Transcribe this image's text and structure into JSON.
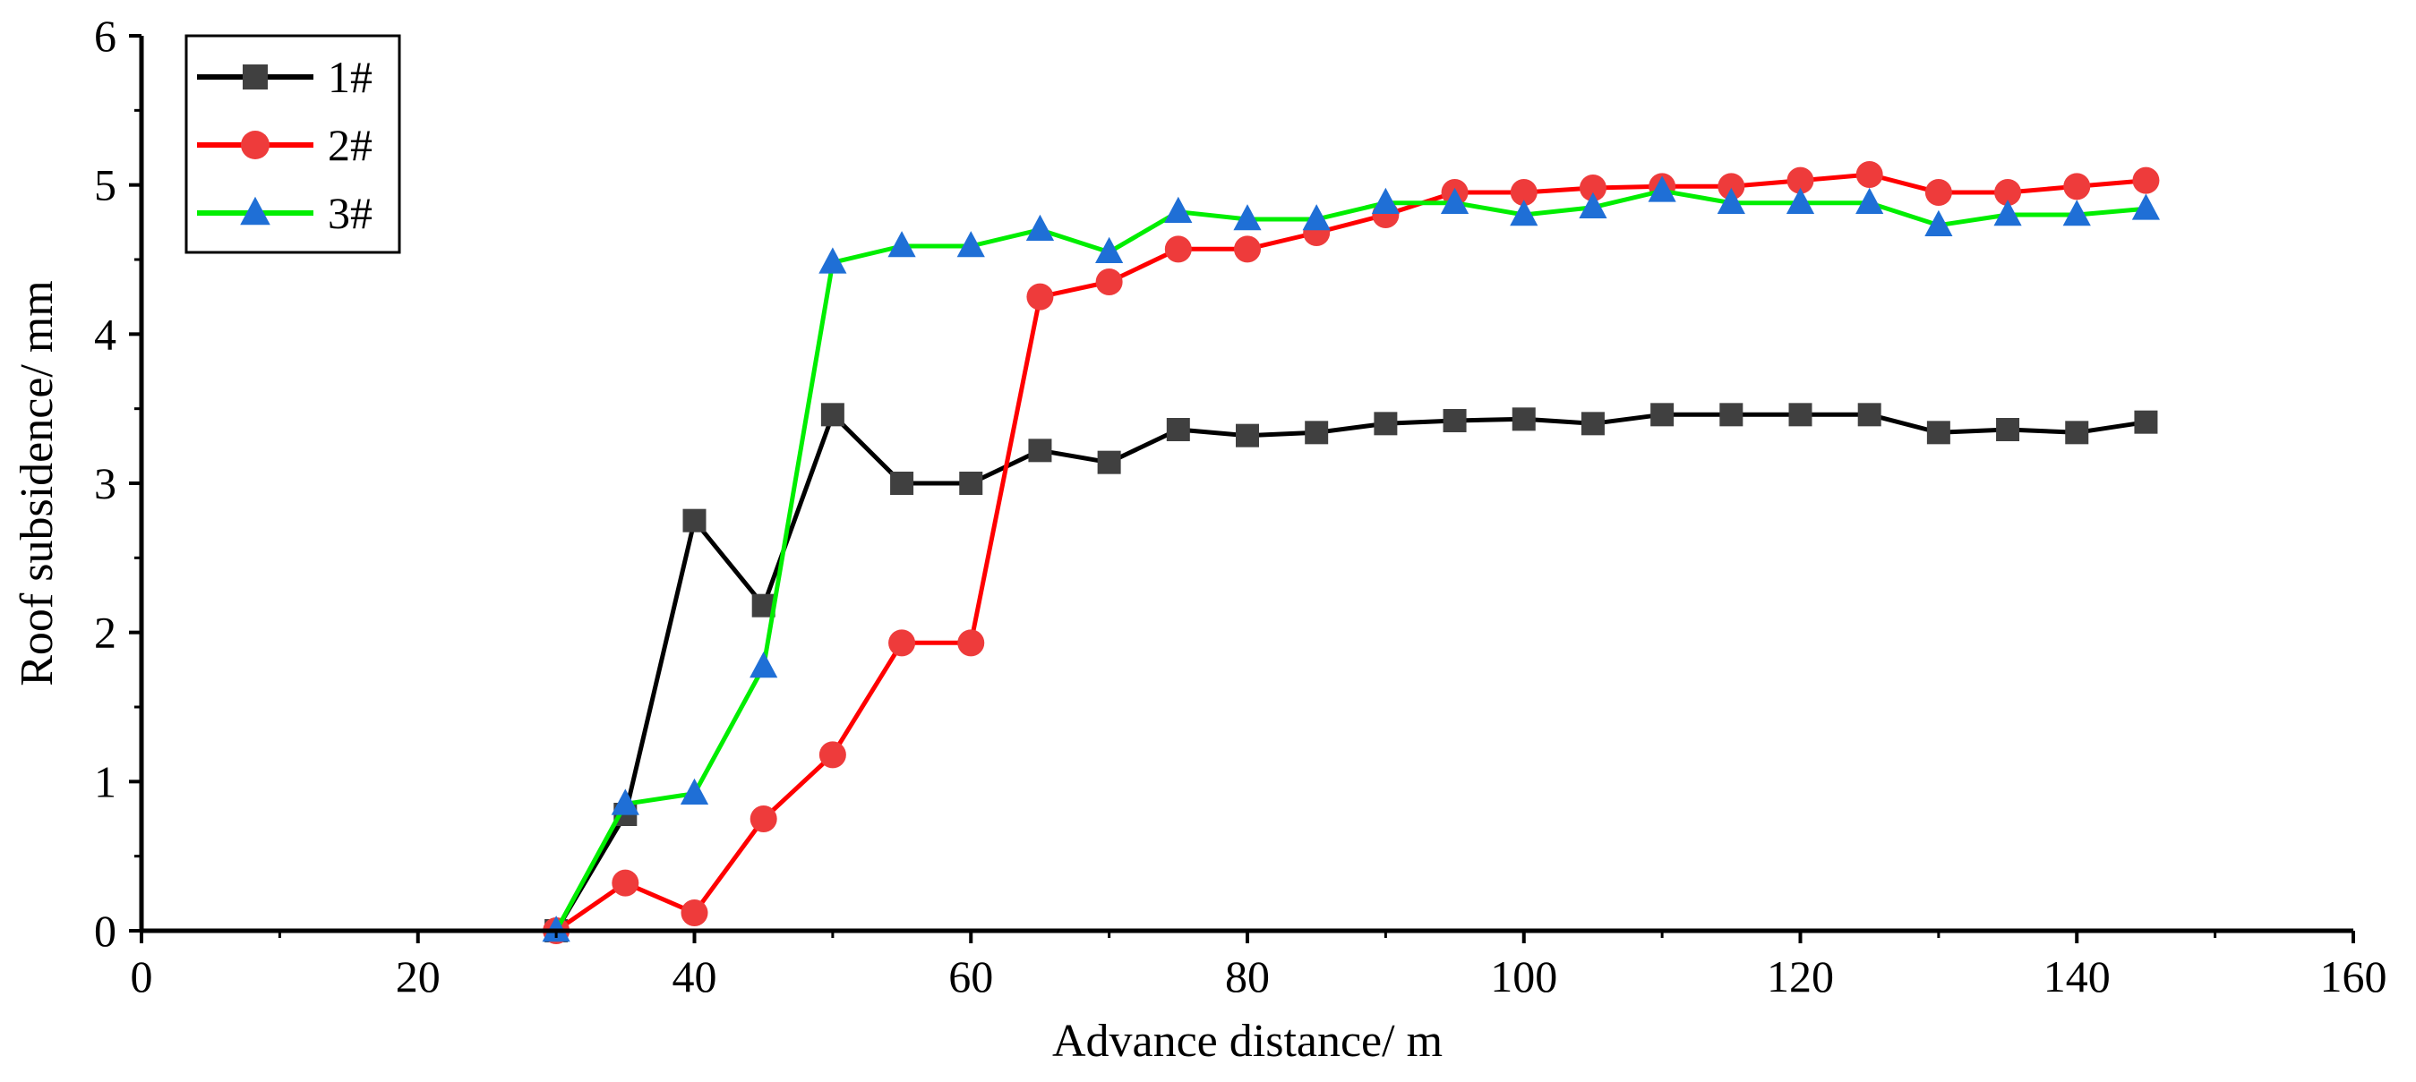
{
  "chart_data": {
    "type": "line",
    "title": "",
    "xlabel": "Advance distance/ m",
    "ylabel": "Roof subsidence/ mm",
    "xlim": [
      0,
      160
    ],
    "ylim": [
      0,
      6
    ],
    "xticks": [
      0,
      20,
      40,
      60,
      80,
      100,
      120,
      140,
      160
    ],
    "yticks": [
      0,
      1,
      2,
      3,
      4,
      5,
      6
    ],
    "grid": false,
    "legend_position": "top-left",
    "x": [
      30,
      35,
      40,
      45,
      50,
      55,
      60,
      65,
      70,
      75,
      80,
      85,
      90,
      95,
      100,
      105,
      110,
      115,
      120,
      125,
      130,
      135,
      140,
      145
    ],
    "series": [
      {
        "name": "1#",
        "color": "#000000",
        "marker_color": "#404040",
        "marker": "square",
        "values": [
          0,
          0.78,
          2.75,
          2.18,
          3.46,
          3.0,
          3.0,
          3.22,
          3.14,
          3.36,
          3.32,
          3.34,
          3.4,
          3.42,
          3.43,
          3.4,
          3.46,
          3.46,
          3.46,
          3.46,
          3.34,
          3.36,
          3.34,
          3.41
        ]
      },
      {
        "name": "2#",
        "color": "#ff0000",
        "marker_color": "#ee3b3b",
        "marker": "circle",
        "values": [
          0,
          0.32,
          0.12,
          0.75,
          1.18,
          1.93,
          1.93,
          4.25,
          4.35,
          4.57,
          4.57,
          4.68,
          4.8,
          4.95,
          4.95,
          4.98,
          4.99,
          4.99,
          5.03,
          5.07,
          4.95,
          4.95,
          4.99,
          5.03
        ]
      },
      {
        "name": "3#",
        "color": "#00ee00",
        "marker_color": "#1f6fd6",
        "marker": "triangle",
        "values": [
          0,
          0.85,
          0.92,
          1.77,
          4.48,
          4.59,
          4.59,
          4.7,
          4.55,
          4.82,
          4.77,
          4.77,
          4.88,
          4.88,
          4.8,
          4.85,
          4.96,
          4.88,
          4.88,
          4.88,
          4.73,
          4.8,
          4.8,
          4.84
        ]
      }
    ]
  }
}
